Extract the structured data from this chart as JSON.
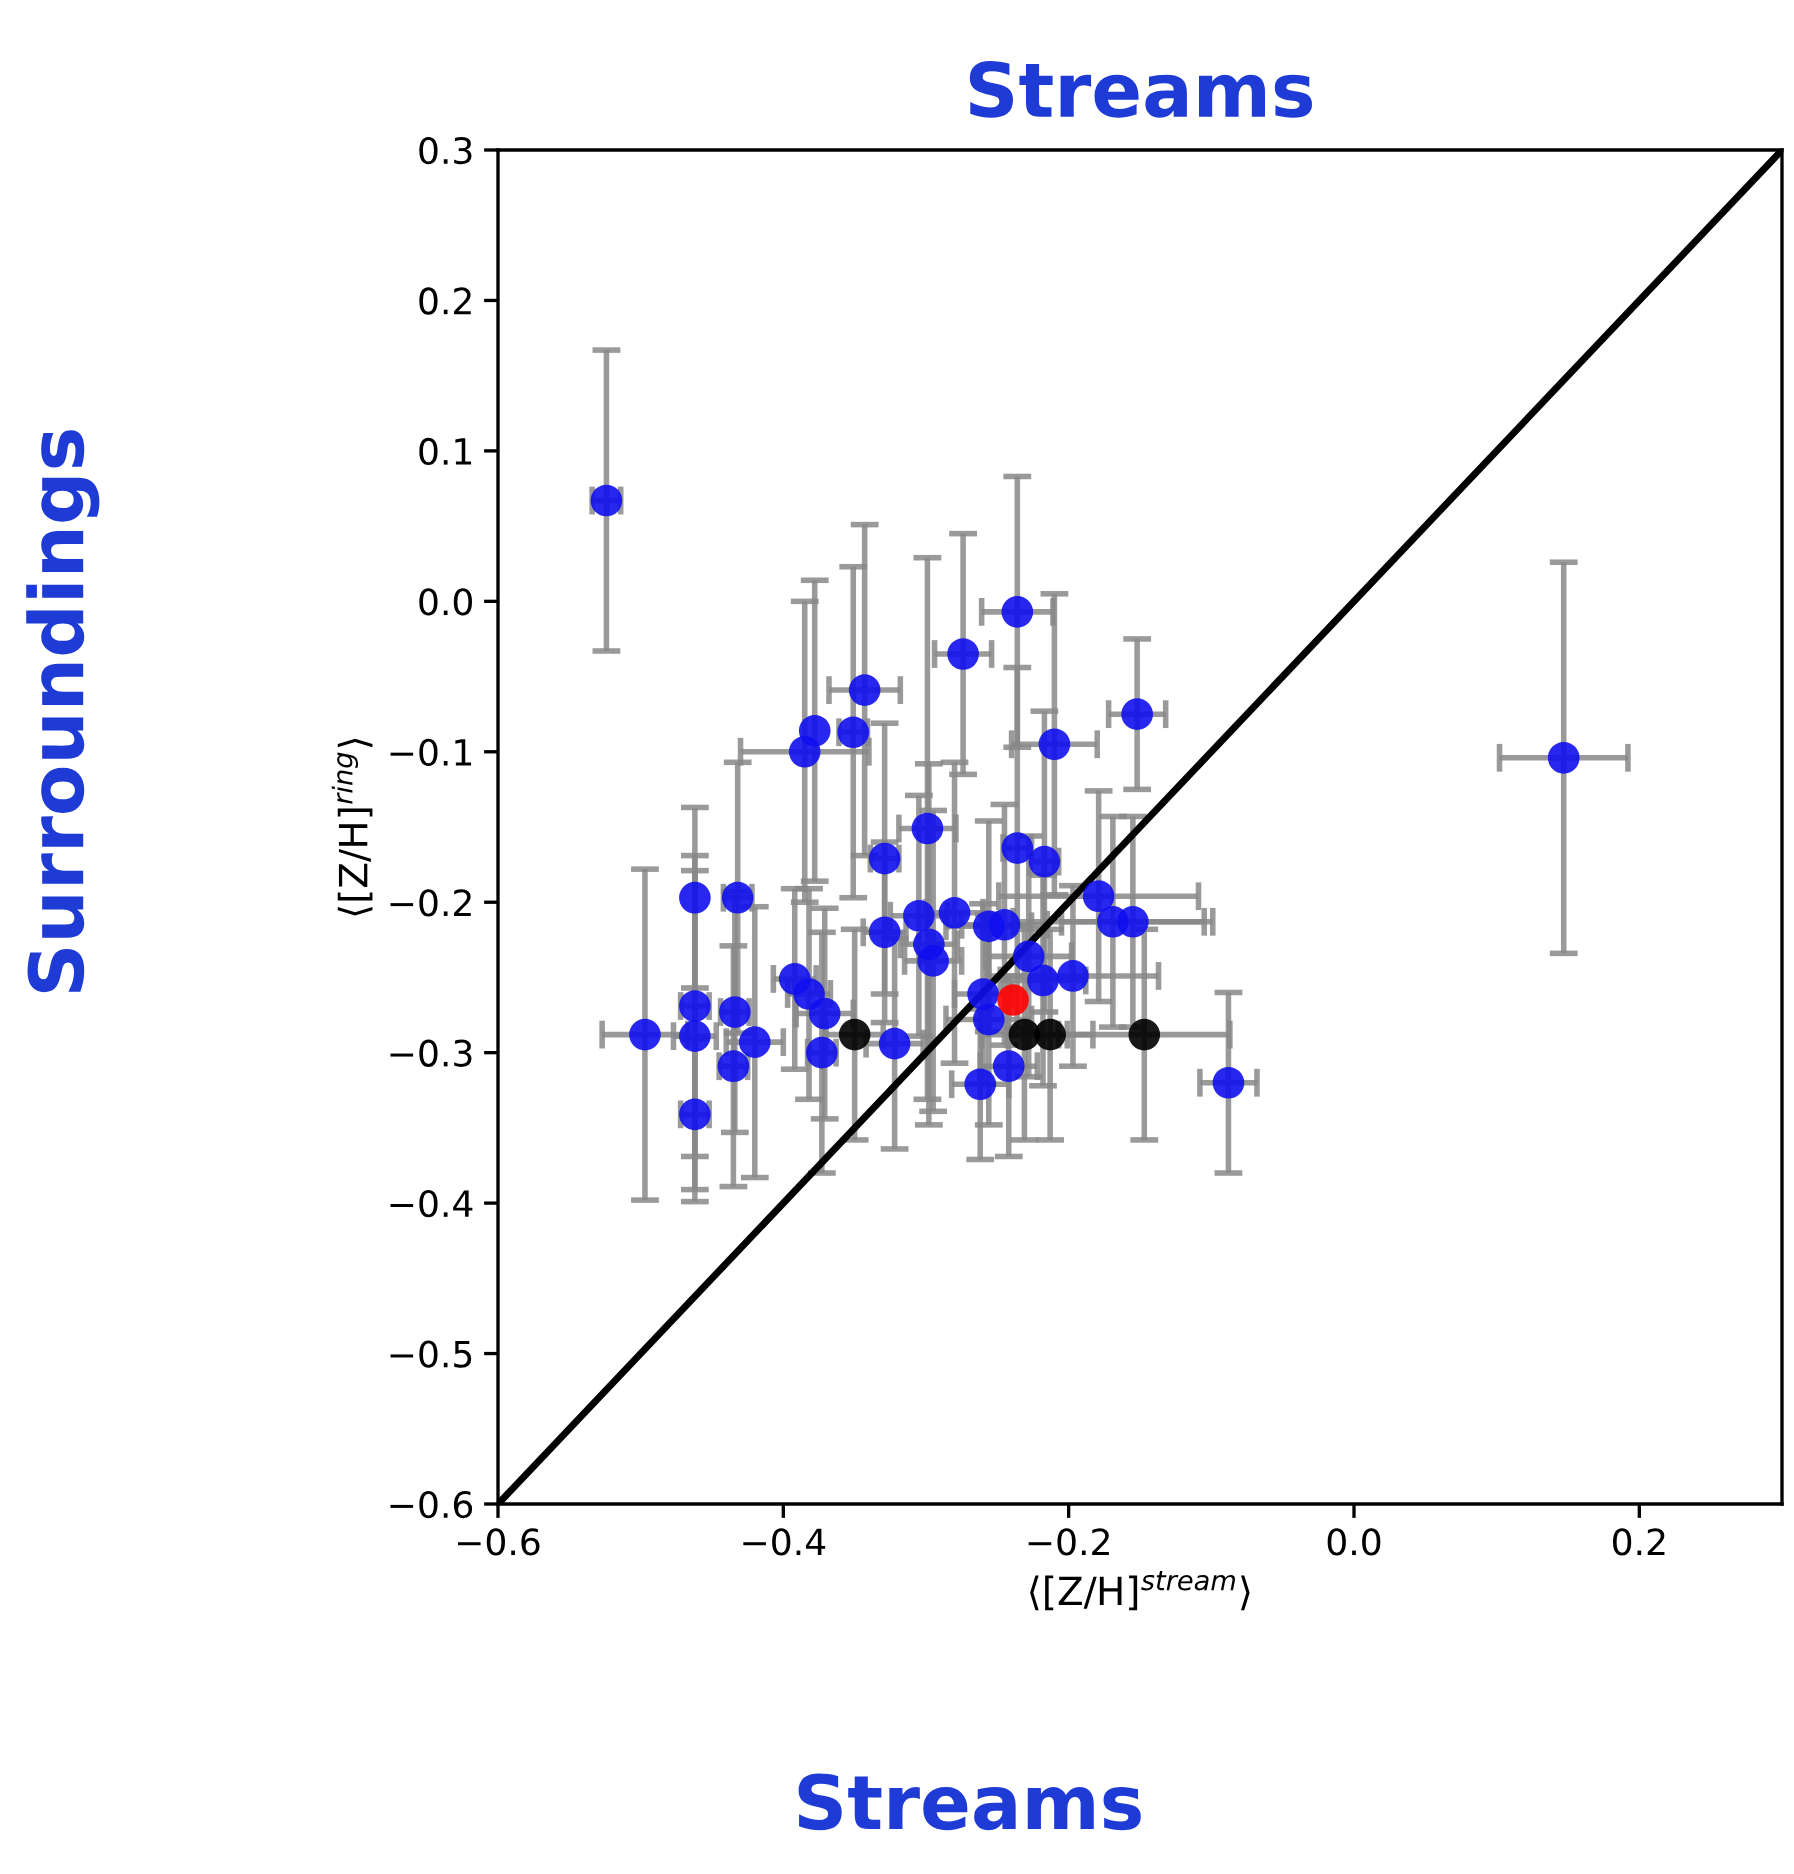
{
  "chart_data": {
    "type": "scatter",
    "title": "Streams",
    "xlabel": "⟨[Z/H]$^{stream}$⟩",
    "ylabel": "⟨[Z/H]$^{ring}$⟩",
    "annotations": [
      "Streams",
      "Surroundings"
    ],
    "xlim": [
      -0.6,
      0.3
    ],
    "ylim": [
      -0.6,
      0.3
    ],
    "xticks": [
      {
        "value": -0.6,
        "label": "−0.6"
      },
      {
        "value": -0.4,
        "label": "−0.4"
      },
      {
        "value": -0.2,
        "label": "−0.2"
      },
      {
        "value": 0.0,
        "label": "0.0"
      },
      {
        "value": 0.2,
        "label": "0.2"
      }
    ],
    "yticks": [
      {
        "value": -0.6,
        "label": "−0.6"
      },
      {
        "value": -0.5,
        "label": "−0.5"
      },
      {
        "value": -0.4,
        "label": "−0.4"
      },
      {
        "value": -0.3,
        "label": "−0.3"
      },
      {
        "value": -0.2,
        "label": "−0.2"
      },
      {
        "value": -0.1,
        "label": "−0.1"
      },
      {
        "value": 0.0,
        "label": "0.0"
      },
      {
        "value": 0.1,
        "label": "0.1"
      },
      {
        "value": 0.2,
        "label": "0.2"
      },
      {
        "value": 0.3,
        "label": "0.3"
      }
    ],
    "grid": false,
    "legend": false,
    "marker": "circle",
    "series": [
      {
        "type": "line",
        "color": "#000000",
        "x": [
          -0.6,
          0.3
        ],
        "values": [
          -0.6,
          0.3
        ],
        "marker": "none"
      },
      {
        "color": "#1010ee",
        "x": [
          -0.524,
          -0.236,
          -0.274,
          -0.343,
          -0.378,
          -0.351,
          -0.385,
          -0.21,
          -0.152,
          -0.088,
          0.147,
          -0.299,
          -0.329,
          -0.236,
          -0.217,
          -0.462,
          -0.432,
          -0.179,
          -0.169,
          -0.155,
          -0.329,
          -0.305,
          -0.28,
          -0.298,
          -0.295,
          -0.256,
          -0.245,
          -0.228,
          -0.218,
          -0.197,
          -0.26,
          -0.256,
          -0.392,
          -0.382,
          -0.371,
          -0.373,
          -0.322,
          -0.462,
          -0.462,
          -0.497,
          -0.434,
          -0.42,
          -0.435,
          -0.462,
          -0.262,
          -0.242
        ],
        "values": [
          0.067,
          -0.007,
          -0.035,
          -0.059,
          -0.086,
          -0.087,
          -0.1,
          -0.095,
          -0.075,
          -0.32,
          -0.104,
          -0.151,
          -0.171,
          -0.164,
          -0.173,
          -0.197,
          -0.197,
          -0.196,
          -0.213,
          -0.213,
          -0.22,
          -0.209,
          -0.207,
          -0.228,
          -0.239,
          -0.216,
          -0.215,
          -0.236,
          -0.252,
          -0.249,
          -0.261,
          -0.278,
          -0.251,
          -0.261,
          -0.274,
          -0.3,
          -0.294,
          -0.269,
          -0.289,
          -0.288,
          -0.273,
          -0.293,
          -0.309,
          -0.341,
          -0.321,
          -0.309
        ],
        "errors": [
          0.1,
          0.09,
          0.08,
          0.11,
          0.1,
          0.11,
          0.1,
          0.1,
          0.05,
          0.06,
          0.13,
          0.18,
          0.09,
          0.12,
          0.1,
          0.06,
          0.09,
          0.07,
          0.07,
          0.07,
          0.06,
          0.08,
          0.1,
          0.12,
          0.1,
          0.07,
          0.08,
          0.08,
          0.07,
          0.06,
          0.06,
          0.07,
          0.06,
          0.07,
          0.07,
          0.08,
          0.07,
          0.1,
          0.11,
          0.11,
          0.08,
          0.09,
          0.08,
          0.05,
          0.05,
          0.06
        ],
        "xerrors": [
          0.01,
          0.025,
          0.02,
          0.025,
          null,
          0.01,
          0.045,
          0.03,
          0.02,
          0.02,
          0.045,
          0.02,
          0.01,
          0.01,
          0.01,
          null,
          0.01,
          0.07,
          0.07,
          0.05,
          0.015,
          0.02,
          0.02,
          0.02,
          0.02,
          0.03,
          0.03,
          0.03,
          0.03,
          0.06,
          0.02,
          0.03,
          0.015,
          0.015,
          0.02,
          0.01,
          0.02,
          0.01,
          0.015,
          0.03,
          0.01,
          0.02,
          0.01,
          0.01,
          0.02,
          0.02
        ]
      },
      {
        "color": "#000000",
        "x": [
          -0.35,
          -0.231,
          -0.213,
          -0.147
        ],
        "values": [
          -0.288,
          -0.288,
          -0.288,
          -0.288
        ],
        "errors": [
          0.07,
          0.07,
          0.07,
          0.07
        ],
        "xerrors": [
          0.02,
          0.03,
          0.03,
          0.06
        ]
      },
      {
        "color": "#ff0000",
        "x": [
          -0.239
        ],
        "values": [
          -0.265
        ]
      }
    ]
  }
}
